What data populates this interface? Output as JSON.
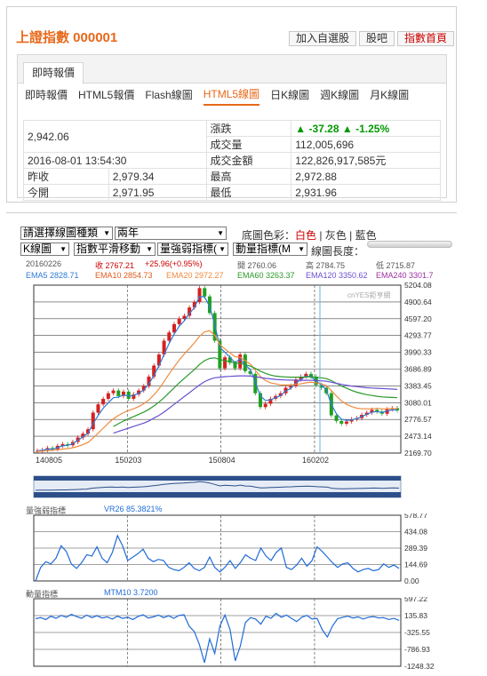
{
  "header": {
    "title": "上證指數 000001",
    "links": [
      {
        "label": "加入自選股"
      },
      {
        "label": "股吧"
      },
      {
        "label": "指數首頁"
      }
    ]
  },
  "tab": {
    "label": "即時報價"
  },
  "subnav": [
    {
      "label": "即時報價",
      "active": false
    },
    {
      "label": "HTML5報價",
      "active": false
    },
    {
      "label": "Flash線圖",
      "active": false
    },
    {
      "label": "HTML5線圖",
      "active": true
    },
    {
      "label": "日K線圖",
      "active": false
    },
    {
      "label": "週K線圖",
      "active": false
    },
    {
      "label": "月K線圖",
      "active": false
    }
  ],
  "quote": {
    "price": "2,942.06",
    "datetime": "2016-08-01 13:54:30",
    "change_label": "漲跌",
    "change": "-37.28",
    "change_pct": "-1.25%",
    "volume_label": "成交量",
    "volume": "112,005,696",
    "amount_label": "成交金額",
    "amount": "122,826,917,585元",
    "prev_close_label": "昨收",
    "prev_close": "2,979.34",
    "open_label": "今開",
    "open": "2,971.95",
    "high_label": "最高",
    "high": "2,972.88",
    "low_label": "最低",
    "low": "2,931.96"
  },
  "controls": {
    "chart_type": "請選擇線圖種類",
    "period": "兩年",
    "bg_label": "底圖色彩：",
    "bg_white": "白色",
    "bg_gray": "灰色",
    "bg_black": "藍色",
    "kline": "K線圖",
    "ema": "指數平滑移動",
    "strength": "量強弱指標(",
    "momentum": "動量指標(M",
    "length_label": "線圖長度："
  },
  "info": {
    "date": "20160226",
    "close": "收 2767.21",
    "change": "+25.96(+0.95%)",
    "open": "開 2760.06",
    "high": "高 2784.75",
    "low": "低 2715.87",
    "ema5": "EMA5 2828.71",
    "ema10": "EMA10 2854.73",
    "ema20": "EMA20 2972.27",
    "ema60": "EMA60 3263.37",
    "ema120": "EMA120 3350.62",
    "ema240": "EMA240 3301.7"
  },
  "watermark": "cnYES鉅亨網",
  "panel_titles": {
    "vr": "量強弱指標",
    "vr_value": "VR26 85.3821%",
    "mtm": "動量指標",
    "mtm_value": "MTM10 3.7200"
  },
  "colors": {
    "brand_orange": "#e8681a",
    "up_green": "#009900",
    "down_red": "#cc0000",
    "ema5": "#2e7bd6",
    "ema10": "#e05a1c",
    "ema20": "#f08a3c",
    "ema60": "#2a9a2a",
    "ema120": "#6a4fd0",
    "ema240": "#9c2fa3",
    "indicator": "#1f6bd8"
  },
  "chart_data": [
    {
      "type": "candlestick",
      "title": "",
      "ylim": [
        2169.7,
        5204.08
      ],
      "y_ticks": [
        5204.08,
        4900.64,
        4597.2,
        4293.77,
        3990.33,
        3686.89,
        3383.45,
        3080.01,
        2776.57,
        2473.14,
        2169.7
      ],
      "x_ticks": [
        "140805",
        "150203",
        "150804",
        "160202"
      ],
      "series": [
        {
          "name": "Close",
          "values": [
            2210,
            2225,
            2260,
            2240,
            2300,
            2330,
            2310,
            2370,
            2450,
            2520,
            2600,
            2900,
            3050,
            3150,
            3250,
            3300,
            3200,
            3280,
            3150,
            3230,
            3300,
            3380,
            3550,
            3750,
            3950,
            4200,
            4350,
            4500,
            4600,
            4650,
            4800,
            4900,
            5150,
            5000,
            4700,
            4200,
            3700,
            3900,
            3800,
            3700,
            3950,
            3650,
            3600,
            3250,
            3000,
            3060,
            3150,
            3200,
            3250,
            3350,
            3380,
            3500,
            3550,
            3600,
            3550,
            3400,
            3350,
            3250,
            2850,
            2750,
            2700,
            2740,
            2780,
            2800,
            2860,
            2900,
            2950,
            2920,
            2880,
            2960,
            2980,
            2940
          ]
        },
        {
          "name": "EMA5",
          "values": [
            2210,
            2220,
            2240,
            2240,
            2270,
            2300,
            2310,
            2340,
            2400,
            2460,
            2530,
            2700,
            2850,
            2980,
            3080,
            3170,
            3180,
            3220,
            3200,
            3210,
            3250,
            3310,
            3420,
            3570,
            3750,
            3950,
            4150,
            4320,
            4460,
            4560,
            4690,
            4800,
            5000,
            4990,
            4820,
            4500,
            4080,
            3990,
            3900,
            3800,
            3870,
            3760,
            3680,
            3450,
            3200,
            3120,
            3130,
            3170,
            3210,
            3290,
            3340,
            3430,
            3500,
            3560,
            3550,
            3470,
            3400,
            3320,
            3050,
            2880,
            2780,
            2760,
            2770,
            2790,
            2830,
            2870,
            2910,
            2920,
            2900,
            2930,
            2950,
            2945
          ]
        },
        {
          "name": "EMA20",
          "values": [
            2200,
            2205,
            2215,
            2220,
            2230,
            2240,
            2250,
            2265,
            2290,
            2320,
            2360,
            2440,
            2530,
            2620,
            2710,
            2790,
            2850,
            2900,
            2940,
            2970,
            3010,
            3060,
            3130,
            3220,
            3330,
            3460,
            3600,
            3730,
            3850,
            3960,
            4060,
            4160,
            4280,
            4360,
            4380,
            4300,
            4130,
            4050,
            3980,
            3910,
            3900,
            3840,
            3780,
            3670,
            3550,
            3480,
            3440,
            3420,
            3400,
            3400,
            3400,
            3410,
            3420,
            3440,
            3450,
            3440,
            3420,
            3390,
            3300,
            3200,
            3110,
            3050,
            3010,
            2980,
            2970,
            2970,
            2970,
            2975,
            2970,
            2970,
            2972,
            2972
          ]
        },
        {
          "name": "EMA60",
          "values": [
            null,
            null,
            null,
            null,
            null,
            null,
            null,
            null,
            null,
            null,
            null,
            null,
            null,
            null,
            null,
            2650,
            2700,
            2750,
            2790,
            2830,
            2870,
            2910,
            2960,
            3020,
            3090,
            3170,
            3260,
            3350,
            3440,
            3520,
            3600,
            3680,
            3770,
            3840,
            3880,
            3890,
            3860,
            3840,
            3820,
            3800,
            3790,
            3770,
            3740,
            3700,
            3650,
            3610,
            3580,
            3560,
            3550,
            3545,
            3540,
            3540,
            3540,
            3545,
            3545,
            3540,
            3530,
            3515,
            3480,
            3430,
            3380,
            3340,
            3300,
            3270,
            3245,
            3225,
            3210,
            3195,
            3185,
            3180,
            3175,
            3170
          ]
        },
        {
          "name": "EMA120",
          "values": [
            null,
            null,
            null,
            null,
            null,
            null,
            null,
            null,
            null,
            null,
            null,
            null,
            null,
            null,
            null,
            2530,
            2560,
            2590,
            2620,
            2650,
            2680,
            2710,
            2750,
            2800,
            2850,
            2910,
            2980,
            3050,
            3120,
            3190,
            3260,
            3330,
            3400,
            3460,
            3500,
            3530,
            3540,
            3550,
            3555,
            3560,
            3565,
            3565,
            3560,
            3550,
            3535,
            3520,
            3510,
            3500,
            3495,
            3490,
            3488,
            3486,
            3485,
            3484,
            3483,
            3480,
            3475,
            3468,
            3450,
            3430,
            3410,
            3395,
            3380,
            3370,
            3360,
            3350,
            3345,
            3340,
            3335,
            3330,
            3325,
            3320
          ]
        }
      ]
    },
    {
      "type": "line",
      "title": "量強弱指標",
      "ylim": [
        0,
        578.77
      ],
      "y_ticks": [
        578.77,
        434.08,
        289.39,
        144.69,
        0.0
      ],
      "series": [
        {
          "name": "VR26",
          "values": [
            0,
            120,
            170,
            150,
            200,
            310,
            260,
            150,
            110,
            160,
            230,
            220,
            300,
            200,
            160,
            250,
            400,
            310,
            180,
            210,
            240,
            280,
            200,
            170,
            190,
            180,
            120,
            100,
            90,
            120,
            160,
            110,
            90,
            120,
            210,
            120,
            80,
            120,
            180,
            110,
            160,
            230,
            200,
            180,
            290,
            220,
            180,
            250,
            290,
            120,
            100,
            140,
            200,
            130,
            180,
            300,
            260,
            210,
            160,
            120,
            150,
            160,
            110,
            80,
            100,
            110,
            90,
            100,
            150,
            120,
            140,
            110
          ]
        }
      ]
    },
    {
      "type": "line",
      "title": "動量指標",
      "ylim": [
        -1248.32,
        597.22
      ],
      "y_ticks": [
        597.22,
        135.83,
        -325.55,
        -786.93,
        -1248.32
      ],
      "series": [
        {
          "name": "MTM10",
          "values": [
            50,
            80,
            30,
            120,
            60,
            140,
            90,
            170,
            110,
            60,
            150,
            80,
            130,
            70,
            100,
            40,
            120,
            60,
            90,
            30,
            110,
            160,
            70,
            100,
            150,
            80,
            130,
            60,
            140,
            160,
            -150,
            -300,
            -650,
            -1150,
            -500,
            -900,
            -150,
            150,
            -250,
            -1100,
            -700,
            -50,
            80,
            40,
            -100,
            120,
            60,
            200,
            90,
            150,
            60,
            -30,
            90,
            140,
            40,
            60,
            -250,
            -450,
            -150,
            50,
            90,
            120,
            70,
            100,
            40,
            90,
            110,
            70,
            80,
            30,
            60,
            4
          ]
        }
      ]
    }
  ]
}
